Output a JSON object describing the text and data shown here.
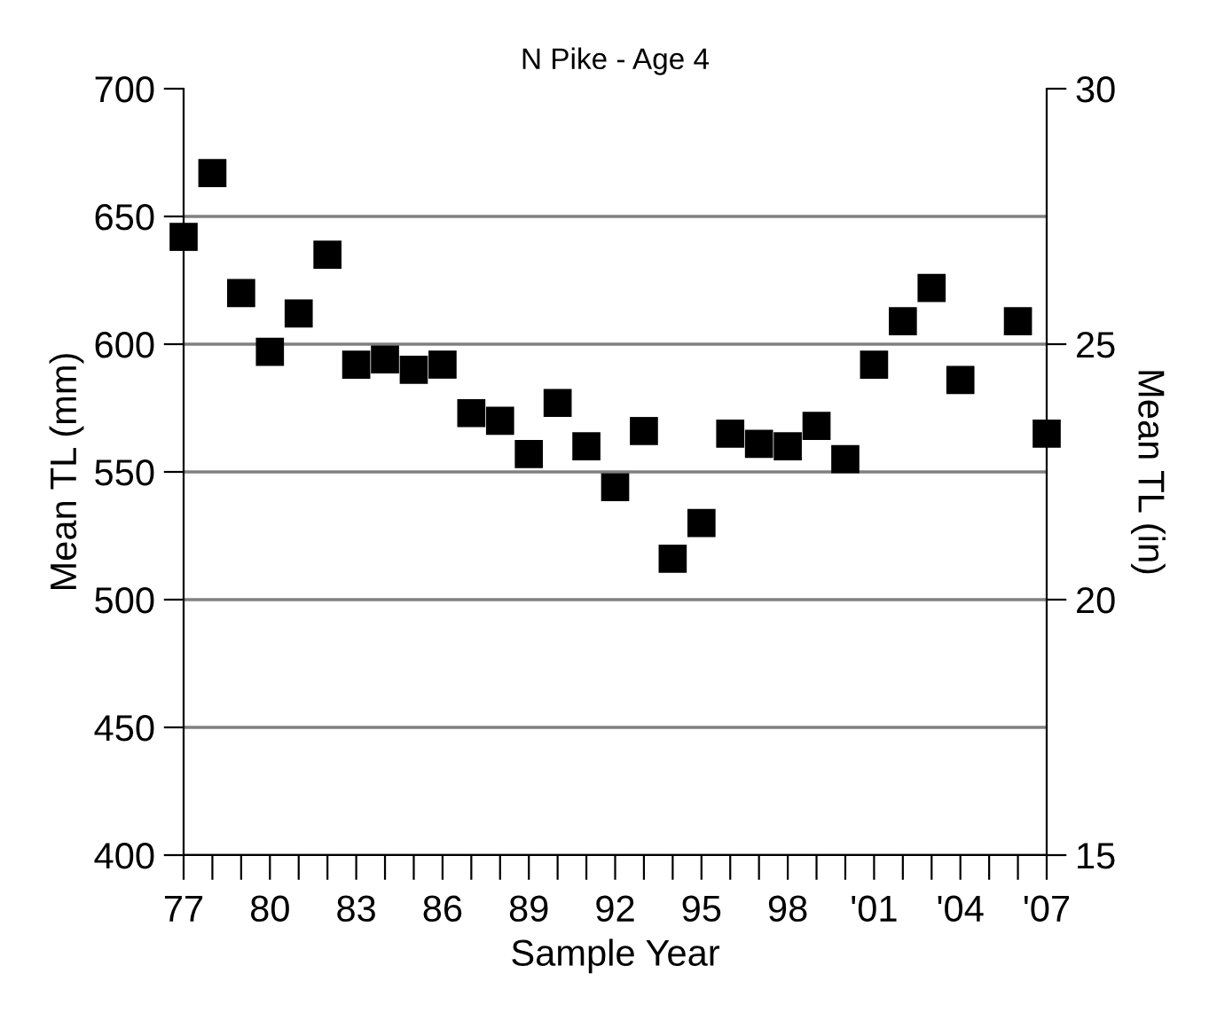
{
  "chart_data": {
    "type": "scatter",
    "title": "N Pike - Age 4",
    "xlabel": "Sample Year",
    "ylabel": "Mean TL (mm)",
    "y2label": "Mean TL (in)",
    "x": [
      1977,
      1978,
      1979,
      1980,
      1981,
      1982,
      1983,
      1984,
      1985,
      1986,
      1987,
      1988,
      1989,
      1990,
      1991,
      1992,
      1993,
      1994,
      1995,
      1996,
      1997,
      1998,
      1999,
      2000,
      2001,
      2002,
      2003,
      2004,
      2005,
      2006,
      2007
    ],
    "series": [
      {
        "color": "#000000",
        "values": [
          642,
          667,
          620,
          597,
          612,
          635,
          592,
          594,
          590,
          592,
          573,
          570,
          557,
          577,
          560,
          544,
          566,
          516,
          530,
          565,
          561,
          560,
          568,
          555,
          592,
          609,
          622,
          586,
          null,
          609,
          565
        ]
      }
    ],
    "marker": "square",
    "grid": "y",
    "xlim": [
      1977,
      2007
    ],
    "xticks": [
      {
        "value": 1977,
        "label": "77"
      },
      {
        "value": 1978,
        "label": null
      },
      {
        "value": 1979,
        "label": null
      },
      {
        "value": 1980,
        "label": "80"
      },
      {
        "value": 1981,
        "label": null
      },
      {
        "value": 1982,
        "label": null
      },
      {
        "value": 1983,
        "label": "83"
      },
      {
        "value": 1984,
        "label": null
      },
      {
        "value": 1985,
        "label": null
      },
      {
        "value": 1986,
        "label": "86"
      },
      {
        "value": 1987,
        "label": null
      },
      {
        "value": 1988,
        "label": null
      },
      {
        "value": 1989,
        "label": "89"
      },
      {
        "value": 1990,
        "label": null
      },
      {
        "value": 1991,
        "label": null
      },
      {
        "value": 1992,
        "label": "92"
      },
      {
        "value": 1993,
        "label": null
      },
      {
        "value": 1994,
        "label": null
      },
      {
        "value": 1995,
        "label": "95"
      },
      {
        "value": 1996,
        "label": null
      },
      {
        "value": 1997,
        "label": null
      },
      {
        "value": 1998,
        "label": "98"
      },
      {
        "value": 1999,
        "label": null
      },
      {
        "value": 2000,
        "label": null
      },
      {
        "value": 2001,
        "label": "'01"
      },
      {
        "value": 2002,
        "label": null
      },
      {
        "value": 2003,
        "label": null
      },
      {
        "value": 2004,
        "label": "'04"
      },
      {
        "value": 2005,
        "label": null
      },
      {
        "value": 2006,
        "label": null
      },
      {
        "value": 2007,
        "label": "'07"
      }
    ],
    "ylim": [
      400,
      700
    ],
    "yticks": [
      400,
      450,
      500,
      550,
      600,
      650,
      700
    ],
    "y2lim": [
      15,
      30
    ],
    "y2ticks": [
      15,
      20,
      25,
      30
    ]
  }
}
